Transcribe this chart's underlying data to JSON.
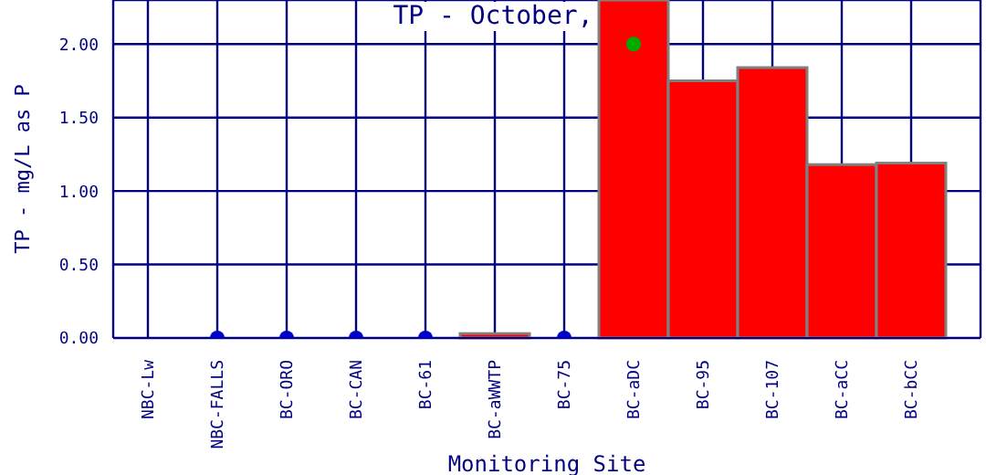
{
  "chart_data": {
    "type": "bar",
    "title": "TP - October,",
    "xlabel": "Monitoring Site",
    "ylabel": "TP - mg/L as P",
    "categories": [
      "NBC-Lw",
      "NBC-FALLS",
      "BC-ORO",
      "BC-CAN",
      "BC-61",
      "BC-aWWTP",
      "BC-75",
      "BC-aDC",
      "BC-95",
      "BC-107",
      "BC-aCC",
      "BC-bCC"
    ],
    "series": [
      {
        "color": "#ff0000",
        "values": [
          0,
          null,
          null,
          null,
          null,
          0.03,
          null,
          2.3,
          1.75,
          1.84,
          1.18,
          1.19
        ]
      },
      {
        "type": "scatter",
        "color": "#0000cc",
        "marker": "circle",
        "values": [
          null,
          0,
          0,
          0,
          0,
          null,
          0,
          null,
          null,
          null,
          null,
          null
        ]
      },
      {
        "type": "scatter",
        "color": "#00aa00",
        "marker": "circle",
        "values": [
          null,
          null,
          null,
          null,
          null,
          null,
          null,
          2.0,
          null,
          null,
          null,
          null
        ]
      }
    ],
    "ylim": [
      0,
      2.3
    ],
    "yticks": [
      {
        "value": 0,
        "label": "0.00"
      },
      {
        "value": 0.5,
        "label": "0.50"
      },
      {
        "value": 1,
        "label": "1.00"
      },
      {
        "value": 1.5,
        "label": "1.50"
      },
      {
        "value": 2,
        "label": "2.00"
      }
    ],
    "grid": true
  }
}
